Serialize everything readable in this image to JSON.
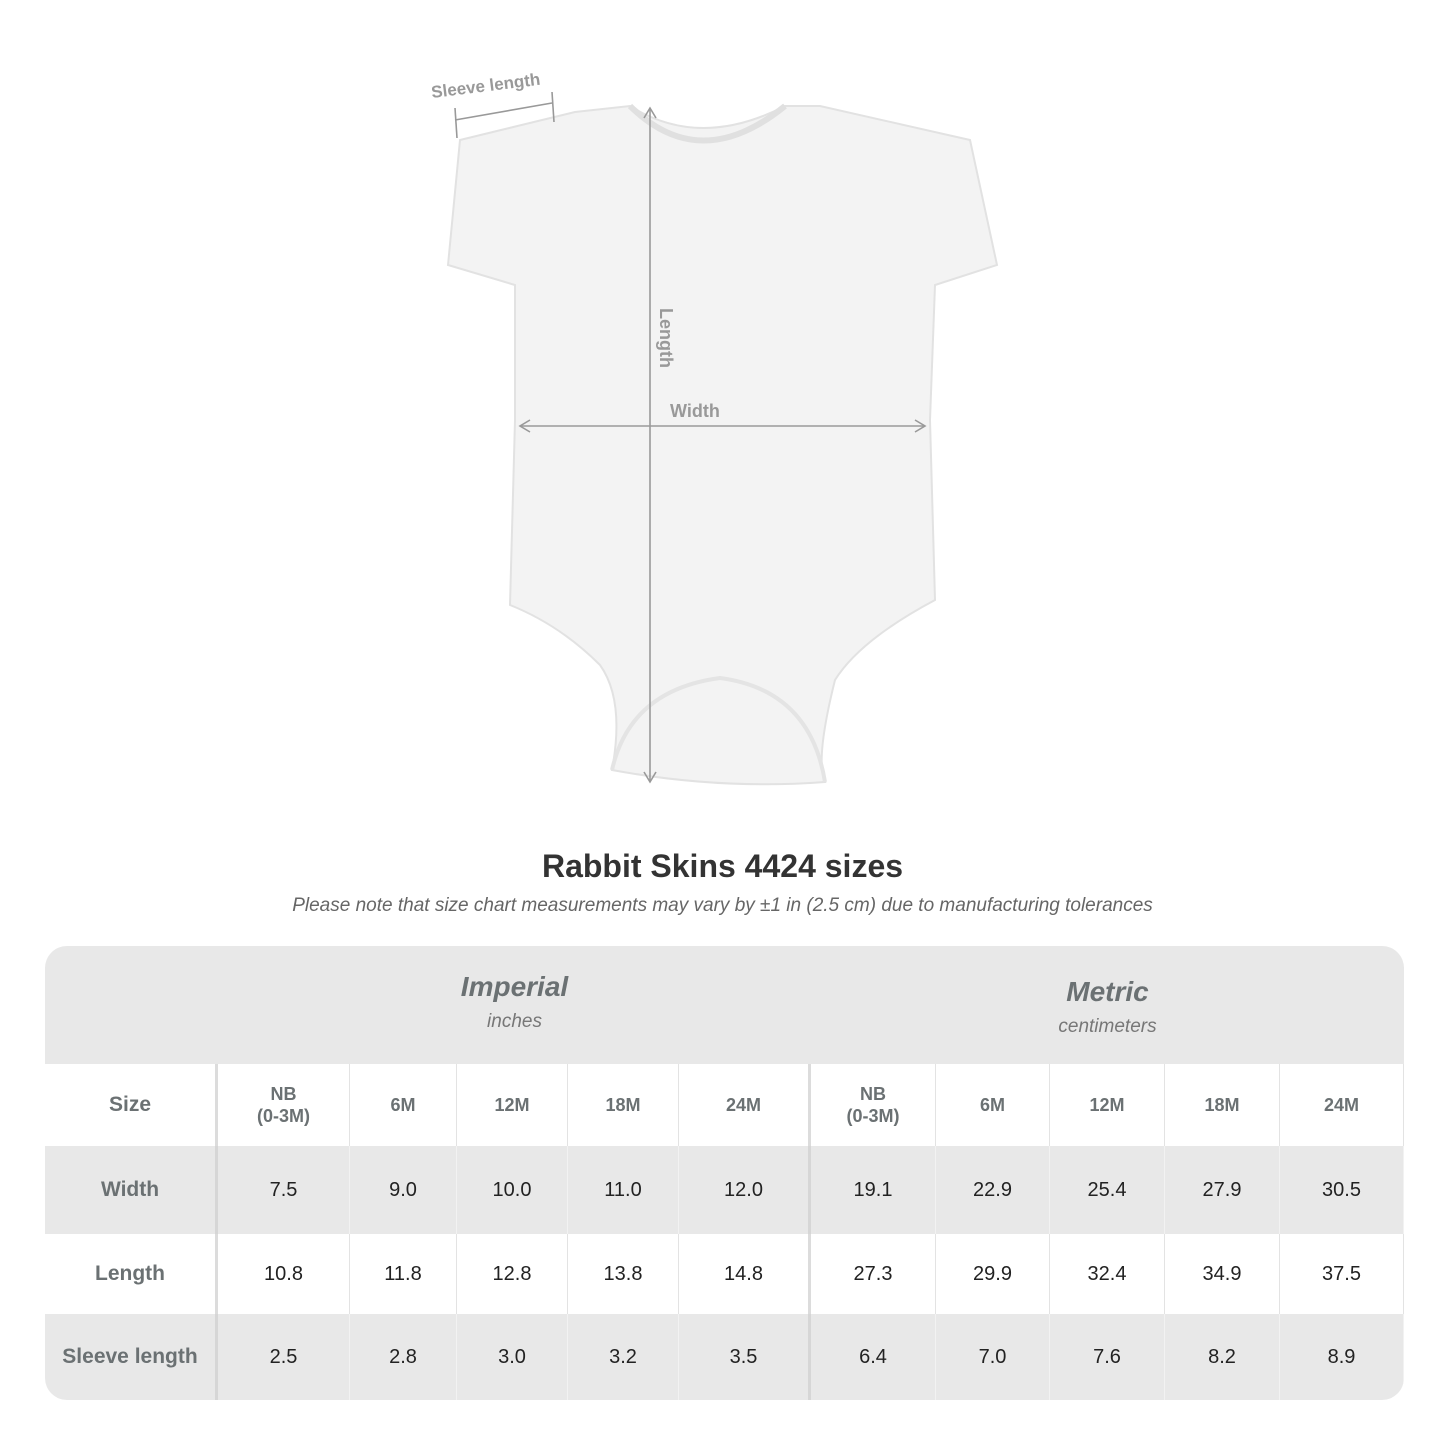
{
  "diagram": {
    "sleeve_label": "Sleeve length",
    "length_label": "Length",
    "width_label": "Width"
  },
  "title": "Rabbit Skins 4424 sizes",
  "note": "Please note that size chart measurements may vary by ±1 in (2.5 cm) due to manufacturing tolerances",
  "table": {
    "imperial": {
      "name": "Imperial",
      "unit": "inches"
    },
    "metric": {
      "name": "Metric",
      "unit": "centimeters"
    },
    "size_label": "Size",
    "sizes": [
      [
        "NB",
        "(0-3M)"
      ],
      [
        "6M"
      ],
      [
        "12M"
      ],
      [
        "18M"
      ],
      [
        "24M"
      ]
    ],
    "rows": [
      {
        "label": "Width",
        "imperial": [
          "7.5",
          "9.0",
          "10.0",
          "11.0",
          "12.0"
        ],
        "metric": [
          "19.1",
          "22.9",
          "25.4",
          "27.9",
          "30.5"
        ]
      },
      {
        "label": "Length",
        "imperial": [
          "10.8",
          "11.8",
          "12.8",
          "13.8",
          "14.8"
        ],
        "metric": [
          "27.3",
          "29.9",
          "32.4",
          "34.9",
          "37.5"
        ]
      },
      {
        "label": "Sleeve length",
        "imperial": [
          "2.5",
          "2.8",
          "3.0",
          "3.2",
          "3.5"
        ],
        "metric": [
          "6.4",
          "7.0",
          "7.6",
          "8.2",
          "8.9"
        ]
      }
    ]
  }
}
